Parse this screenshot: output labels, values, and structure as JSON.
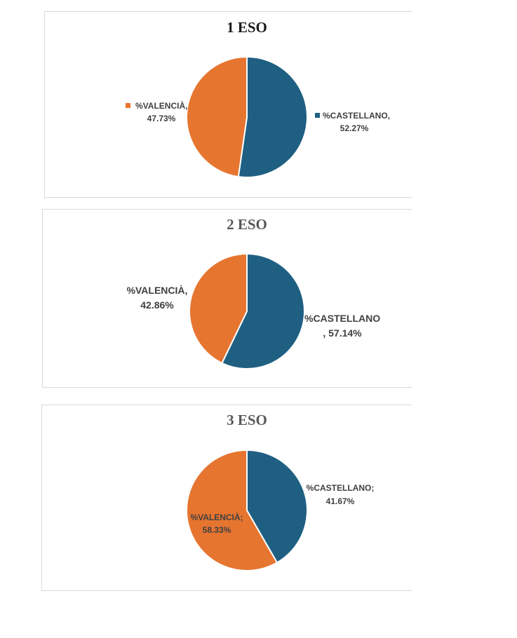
{
  "colors": {
    "castellano": "#1f5f82",
    "valencia": "#e67530",
    "title1": "#1a1a1a",
    "title23": "#595959"
  },
  "chart_data": [
    {
      "type": "pie",
      "title": "1 ESO",
      "slices": [
        {
          "name": "%CASTELLANO",
          "value": 52.27,
          "label_lines": [
            "%CASTELLANO,",
            "52.27%"
          ]
        },
        {
          "name": "%VALENCIÀ",
          "value": 47.73,
          "label_lines": [
            "%VALENCIÀ,",
            "47.73%"
          ]
        }
      ]
    },
    {
      "type": "pie",
      "title": "2 ESO",
      "slices": [
        {
          "name": "%CASTELLANO",
          "value": 57.14,
          "label_lines": [
            "%CASTELLANO",
            ", 57.14%"
          ]
        },
        {
          "name": "%VALENCIÀ",
          "value": 42.86,
          "label_lines": [
            "%VALENCIÀ,",
            "42.86%"
          ]
        }
      ]
    },
    {
      "type": "pie",
      "title": "3 ESO",
      "slices": [
        {
          "name": "%CASTELLANO",
          "value": 41.67,
          "label_lines": [
            "%CASTELLANO;",
            "41.67%"
          ]
        },
        {
          "name": "%VALENCIÀ",
          "value": 58.33,
          "label_lines": [
            "%VALENCIÀ;",
            "58.33%"
          ]
        }
      ]
    }
  ]
}
